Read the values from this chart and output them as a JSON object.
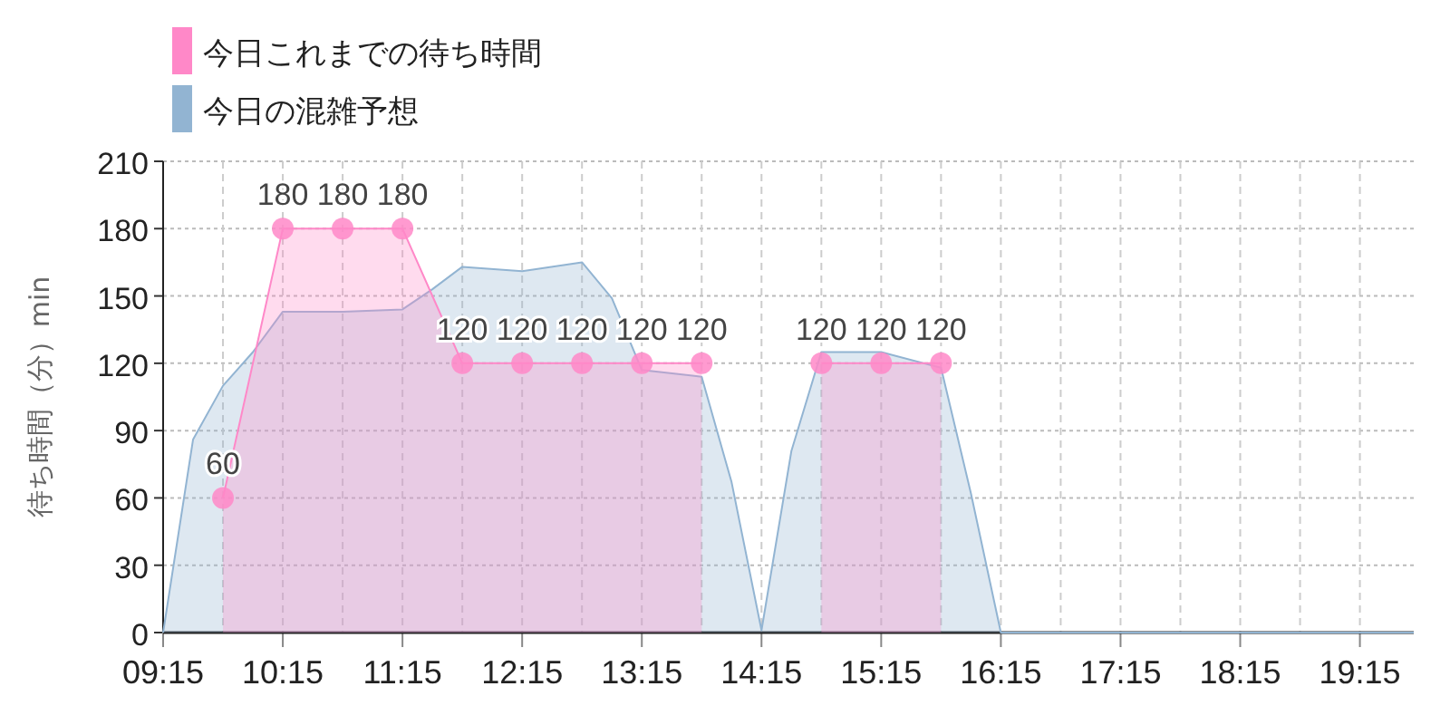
{
  "chart_data": {
    "type": "area",
    "ylabel": "待ち時間（分）min",
    "legend": "top left",
    "grid": true,
    "xlim": [
      9.25,
      19.7
    ],
    "ylim": [
      0,
      210
    ],
    "xticks": [
      {
        "value": 9.25,
        "label": "09:15"
      },
      {
        "value": 9.75,
        "label": null
      },
      {
        "value": 10.25,
        "label": "10:15"
      },
      {
        "value": 10.75,
        "label": null
      },
      {
        "value": 11.25,
        "label": "11:15"
      },
      {
        "value": 11.75,
        "label": null
      },
      {
        "value": 12.25,
        "label": "12:15"
      },
      {
        "value": 12.75,
        "label": null
      },
      {
        "value": 13.25,
        "label": "13:15"
      },
      {
        "value": 13.75,
        "label": null
      },
      {
        "value": 14.25,
        "label": "14:15"
      },
      {
        "value": 14.75,
        "label": null
      },
      {
        "value": 15.25,
        "label": "15:15"
      },
      {
        "value": 15.75,
        "label": null
      },
      {
        "value": 16.25,
        "label": "16:15"
      },
      {
        "value": 16.75,
        "label": null
      },
      {
        "value": 17.25,
        "label": "17:15"
      },
      {
        "value": 17.75,
        "label": null
      },
      {
        "value": 18.25,
        "label": "18:15"
      },
      {
        "value": 18.75,
        "label": null
      },
      {
        "value": 19.25,
        "label": "19:15"
      }
    ],
    "yticks": [
      0,
      30,
      60,
      90,
      120,
      150,
      180,
      210
    ],
    "series": [
      {
        "name": "今日の混雑予想",
        "color": "#92b4d2",
        "marker": "none",
        "x": [
          9.25,
          9.5,
          9.75,
          10.0,
          10.25,
          10.75,
          11.25,
          11.5,
          11.75,
          12.25,
          12.75,
          13.0,
          13.25,
          13.75,
          14.0,
          14.25,
          14.5,
          14.75,
          15.25,
          15.75,
          16.0,
          16.25,
          17.25,
          18.25,
          19.25,
          19.7
        ],
        "values": [
          0,
          86,
          110,
          125,
          143,
          143,
          144,
          153,
          163,
          161,
          165,
          149,
          117,
          114,
          67,
          1,
          81,
          125,
          125,
          118,
          62,
          0,
          0,
          0,
          0,
          0
        ]
      },
      {
        "name": "今日これまでの待ち時間",
        "color": "#ff88c8",
        "marker": "circle",
        "x": [
          9.75,
          10.25,
          10.75,
          11.25,
          11.75,
          12.25,
          12.75,
          13.25,
          13.75,
          14.25,
          14.75,
          15.25,
          15.75
        ],
        "values": [
          60,
          180,
          180,
          180,
          120,
          120,
          120,
          120,
          120,
          null,
          120,
          120,
          120
        ],
        "value_labels": [
          "60",
          "180",
          "180",
          "180",
          "120",
          "120",
          "120",
          "120",
          "120",
          null,
          "120",
          "120",
          "120"
        ]
      }
    ]
  }
}
